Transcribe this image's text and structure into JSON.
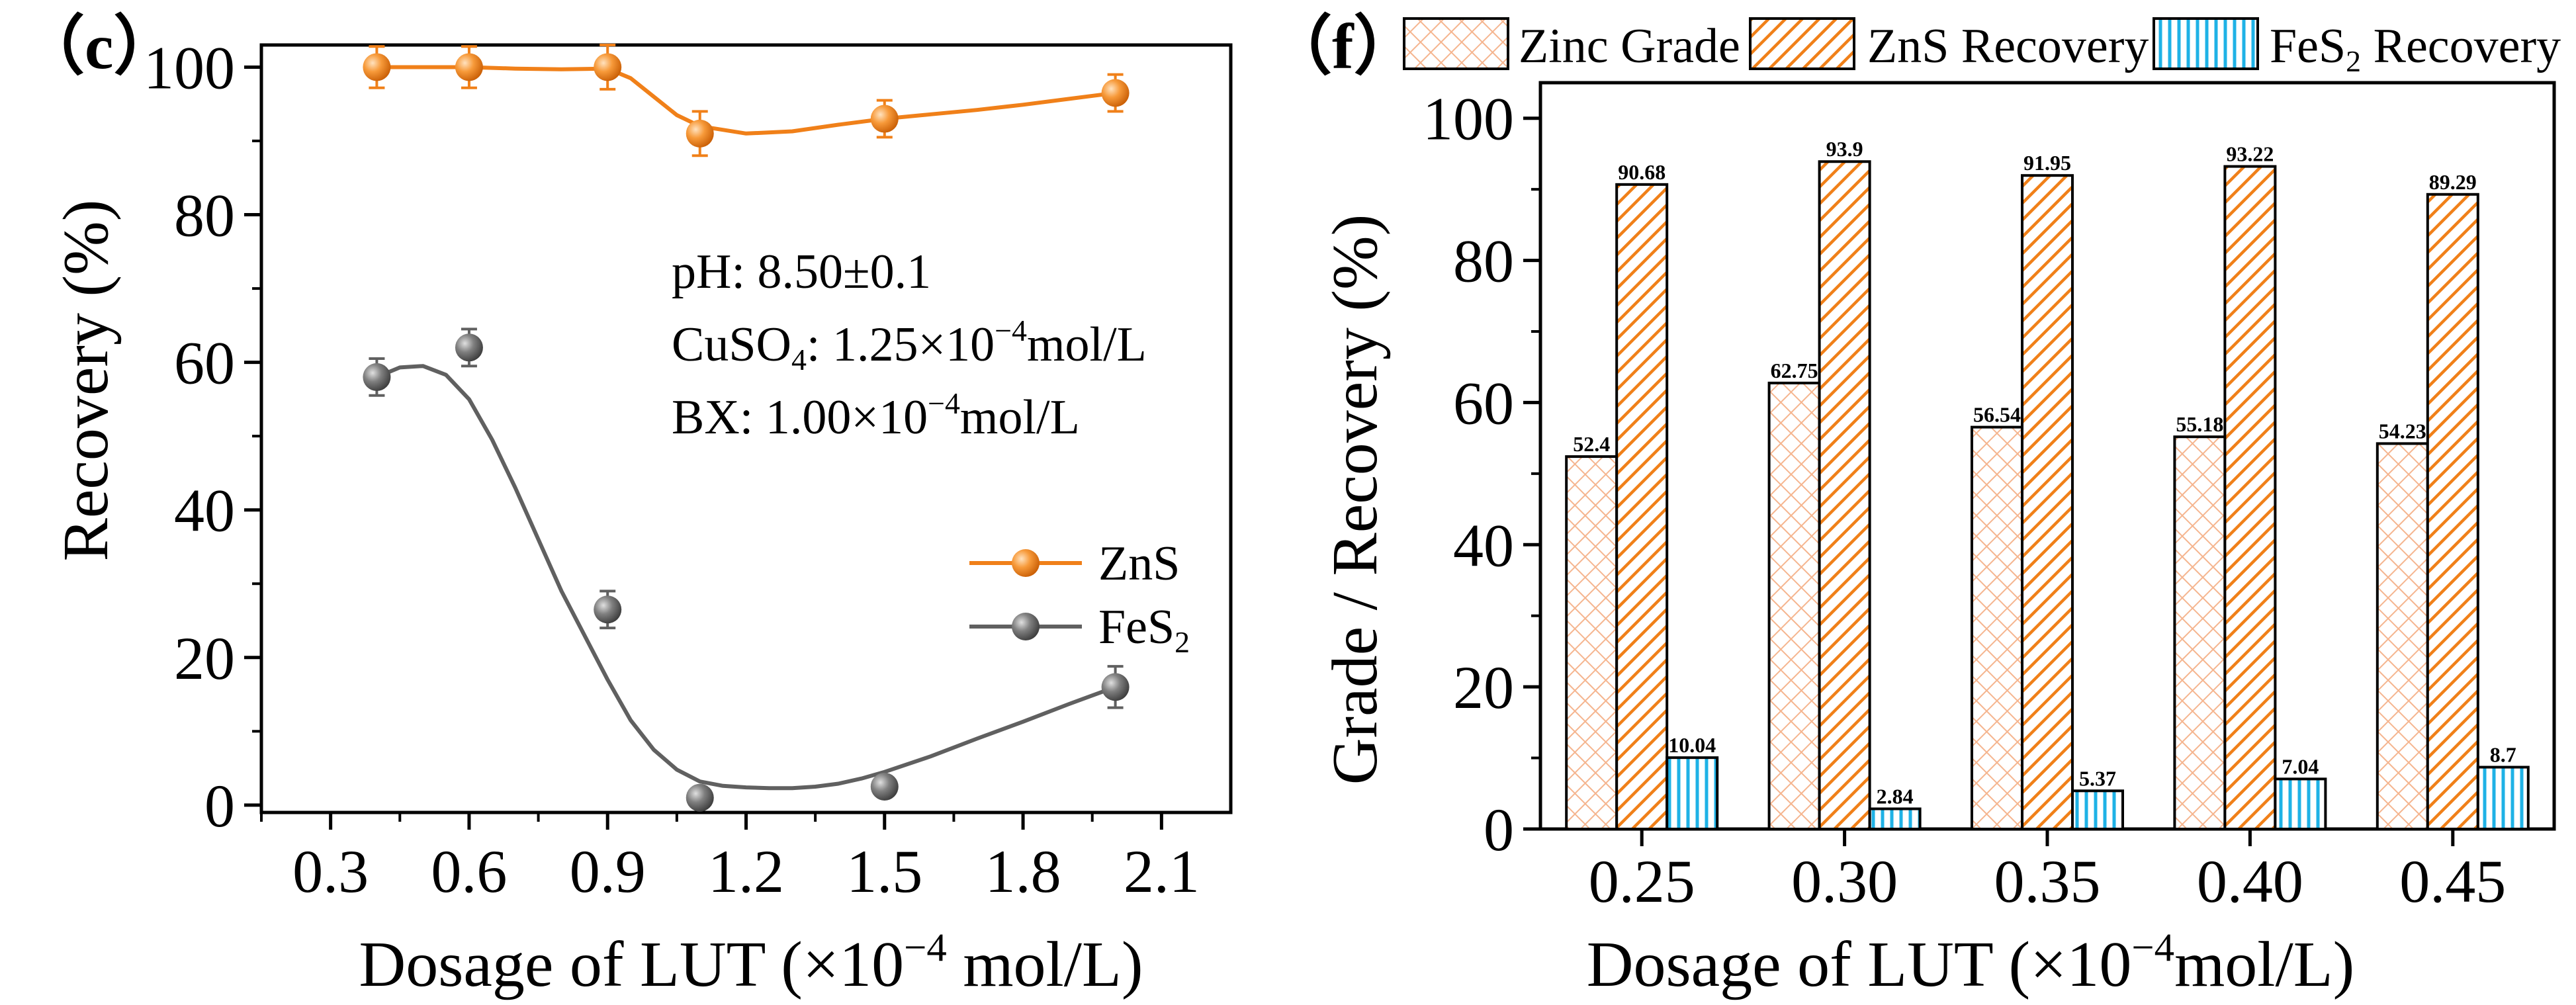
{
  "chart_data": [
    {
      "type": "line",
      "panel_label": "（c）",
      "title": "",
      "xlabel": "Dosage of LUT (×10⁻⁴ mol/L)",
      "ylabel": "Recovery (%)",
      "xlim": [
        0.15,
        2.25
      ],
      "ylim": [
        -1,
        103
      ],
      "xticks": [
        "0.3",
        "0.6",
        "0.9",
        "1.2",
        "1.5",
        "1.8",
        "2.1"
      ],
      "yticks": [
        "0",
        "20",
        "40",
        "60",
        "80",
        "100"
      ],
      "annotations": [
        "pH: 8.50±0.1",
        "CuSO₄: 1.25×10⁻⁴mol/L",
        "BX: 1.00×10⁻⁴mol/L"
      ],
      "series": [
        {
          "name": "ZnS",
          "color": "#f08019",
          "x": [
            0.4,
            0.6,
            0.9,
            1.1,
            1.5,
            2.0
          ],
          "y": [
            100,
            100,
            100,
            91,
            93,
            96.5
          ],
          "err": [
            2.8,
            2.8,
            3.0,
            3.0,
            2.5,
            2.5
          ],
          "curve_x": [
            0.4,
            0.5,
            0.6,
            0.7,
            0.8,
            0.9,
            0.95,
            1.0,
            1.05,
            1.1,
            1.2,
            1.3,
            1.4,
            1.5,
            1.6,
            1.7,
            1.8,
            1.9,
            2.0
          ],
          "curve_y": [
            100,
            100,
            100,
            99.8,
            99.7,
            99.8,
            98.5,
            96,
            93.5,
            92.0,
            91.0,
            91.3,
            92.2,
            93.0,
            93.6,
            94.2,
            94.9,
            95.7,
            96.5
          ]
        },
        {
          "name": "FeS₂",
          "color": "#606060",
          "x": [
            0.4,
            0.6,
            0.9,
            1.1,
            1.5,
            2.0
          ],
          "y": [
            58,
            62,
            26.5,
            1,
            2.5,
            16
          ],
          "err": [
            2.5,
            2.5,
            2.5,
            1.2,
            1.2,
            2.8
          ],
          "curve_x": [
            0.4,
            0.45,
            0.5,
            0.55,
            0.6,
            0.65,
            0.7,
            0.75,
            0.8,
            0.85,
            0.9,
            0.95,
            1.0,
            1.05,
            1.1,
            1.15,
            1.2,
            1.25,
            1.3,
            1.35,
            1.4,
            1.45,
            1.5,
            1.6,
            1.7,
            1.8,
            1.9,
            2.0
          ],
          "curve_y": [
            58,
            59.3,
            59.5,
            58.3,
            55,
            49.5,
            43,
            36,
            29,
            23,
            17,
            11.5,
            7.5,
            4.8,
            3.2,
            2.6,
            2.4,
            2.3,
            2.3,
            2.5,
            2.9,
            3.6,
            4.5,
            6.6,
            9.0,
            11.3,
            13.7,
            16
          ]
        }
      ],
      "legend": {
        "position": "center-right",
        "entries": [
          "ZnS",
          "FeS₂"
        ]
      }
    },
    {
      "type": "bar",
      "panel_label": "（f）",
      "title": "",
      "xlabel": "Dosage of LUT (×10⁻⁴mol/L)",
      "ylabel": "Grade / Recovery (%)",
      "ylim": [
        0,
        105
      ],
      "yticks": [
        "0",
        "20",
        "40",
        "60",
        "80",
        "100"
      ],
      "categories": [
        "0.25",
        "0.30",
        "0.35",
        "0.40",
        "0.45"
      ],
      "series": [
        {
          "name": "Zinc Grade",
          "color": "#f5b58f",
          "pattern": "crosshatch",
          "values": [
            52.4,
            62.75,
            56.54,
            55.18,
            54.23
          ],
          "labels": [
            "52.4",
            "62.75",
            "56.54",
            "55.18",
            "54.23"
          ]
        },
        {
          "name": "ZnS Recovery",
          "color": "#f08019",
          "pattern": "diagonal",
          "values": [
            90.68,
            93.9,
            91.95,
            93.22,
            89.29
          ],
          "labels": [
            "90.68",
            "93.9",
            "91.95",
            "93.22",
            "89.29"
          ]
        },
        {
          "name": "FeS₂ Recovery",
          "color": "#1fb2e6",
          "pattern": "vertical",
          "values": [
            10.04,
            2.84,
            5.37,
            7.04,
            8.7
          ],
          "labels": [
            "10.04",
            "2.84",
            "5.37",
            "7.04",
            "8.7"
          ]
        }
      ],
      "legend": {
        "position": "top",
        "entries": [
          "Zinc Grade",
          "ZnS Recovery",
          "FeS₂ Recovery"
        ]
      }
    }
  ]
}
